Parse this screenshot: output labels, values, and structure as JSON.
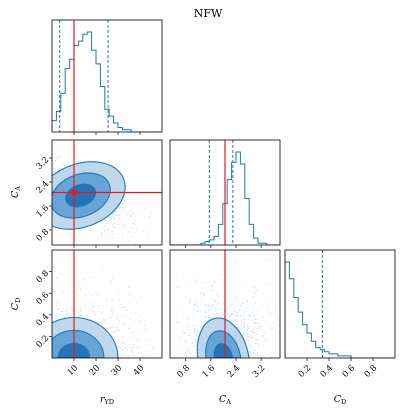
{
  "chart_data": {
    "type": "corner",
    "title": "NFW",
    "parameters": [
      {
        "key": "ryd",
        "label": "r",
        "sub": "YD",
        "range": [
          0,
          50
        ],
        "ticks": [
          "10",
          "20",
          "30",
          "40"
        ],
        "tick_values": [
          10,
          20,
          30,
          40
        ],
        "truth": 10
      },
      {
        "key": "ca",
        "label": "C",
        "sub": "A",
        "range": [
          0.3,
          3.8
        ],
        "ticks": [
          "0.8",
          "1.6",
          "2.4",
          "3.2"
        ],
        "tick_values": [
          0.8,
          1.6,
          2.4,
          3.2
        ],
        "truth": 2.05
      },
      {
        "key": "cd",
        "label": "C",
        "sub": "D",
        "range": [
          0.0,
          1.0
        ],
        "ticks": [
          "0.2",
          "0.4",
          "0.6",
          "0.8"
        ],
        "tick_values": [
          0.2,
          0.4,
          0.6,
          0.8
        ],
        "truth": null
      }
    ],
    "histograms": {
      "ryd": {
        "counts": [
          5,
          9,
          17,
          28,
          32,
          38,
          40,
          43,
          44,
          36,
          30,
          20,
          10,
          7,
          4,
          2,
          1,
          1,
          0,
          0,
          0,
          0,
          0,
          0,
          0
        ],
        "quantiles": [
          3.5,
          25.5
        ]
      },
      "ca": {
        "counts": [
          0,
          0,
          0,
          0,
          0,
          0,
          0,
          1,
          2,
          3,
          5,
          12,
          24,
          38,
          48,
          54,
          47,
          27,
          12,
          4,
          1,
          1,
          0,
          0,
          0
        ],
        "quantiles": [
          1.55,
          2.3
        ]
      },
      "cd": {
        "counts": [
          46,
          38,
          29,
          22,
          16,
          12,
          8,
          5,
          4,
          3,
          2,
          2,
          1,
          1,
          1,
          0,
          0,
          0,
          0,
          0,
          0,
          0,
          0,
          0,
          0
        ],
        "quantiles": [
          0.34
        ]
      }
    },
    "contours_2d": {
      "ca_vs_ryd": {
        "center": [
          13,
          1.95
        ],
        "sd": [
          7,
          0.35
        ],
        "rho": -0.6,
        "levels": [
          1.0,
          2.0,
          3.0
        ]
      },
      "cd_vs_ryd": {
        "center": [
          10,
          0.0
        ],
        "sd": [
          8,
          0.15
        ],
        "rho": 0.0,
        "levels": [
          0.9,
          1.7,
          2.5
        ]
      },
      "cd_vs_ca": {
        "center": [
          2.0,
          0.0
        ],
        "sd": [
          0.32,
          0.15
        ],
        "rho": -0.35,
        "levels": [
          0.9,
          1.7,
          2.5
        ]
      }
    },
    "colors": {
      "line": "#1f77b4",
      "fill1": "#1f6fb4",
      "fill2": "#5ea0d4",
      "fill3": "#b9d4ec",
      "truth": "#e31a1c",
      "points": "#a9c8e8"
    }
  }
}
